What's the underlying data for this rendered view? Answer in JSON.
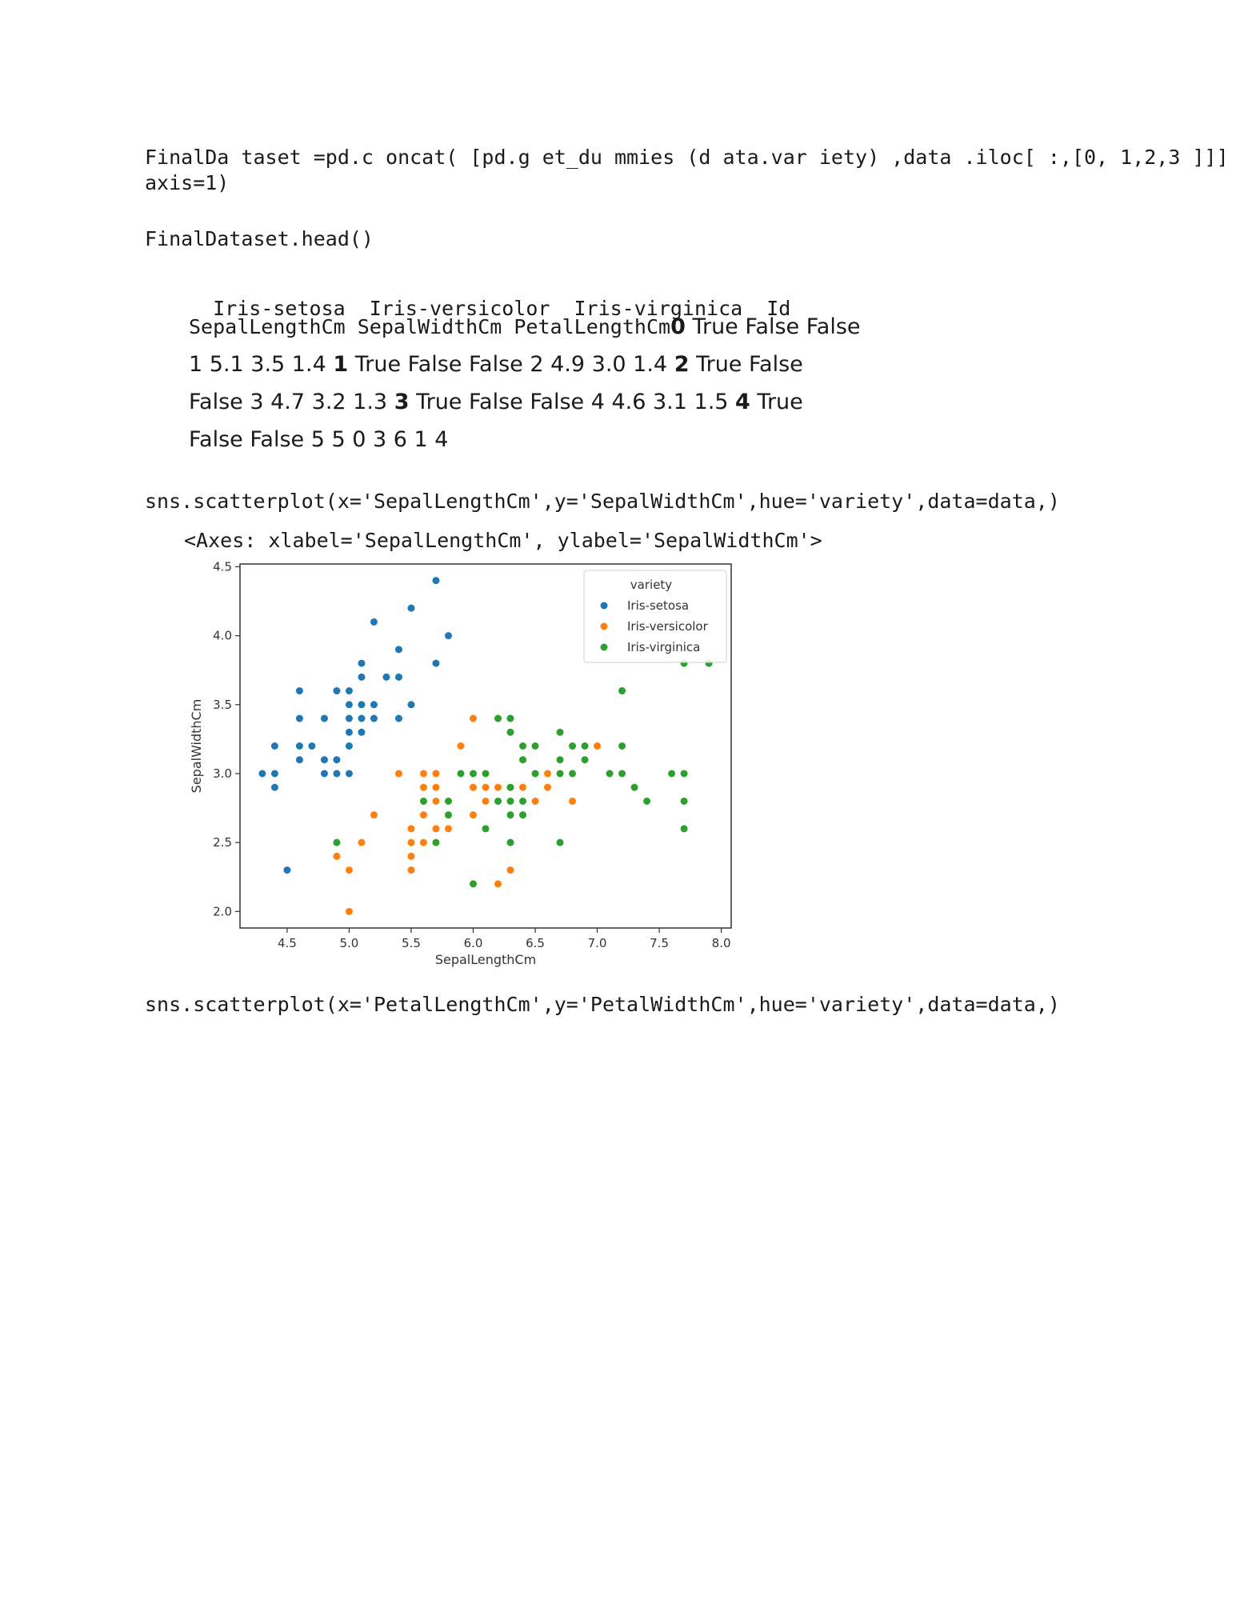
{
  "code_cells": [
    {
      "line1": "FinalDa taset =pd.c oncat( [pd.g et_du mmies (d ata.var iety) ,data .iloc[ :,[0, 1,2,3 ]]] ,",
      "line2": "axis=1)"
    },
    {
      "line1": "FinalDataset.head()"
    },
    {
      "line1": "sns.scatterplot(x='SepalLengthCm',y='SepalWidthCm',hue='variety',data=data,)"
    },
    {
      "line1": "sns.scatterplot(x='PetalLengthCm',y='PetalWidthCm',hue='variety',data=data,)"
    }
  ],
  "table": {
    "header": [
      "Iris-setosa",
      "Iris-versicolor",
      "Iris-virginica",
      "Id"
    ],
    "subheader": "SepalLengthCm SepalWidthCm PetalLengthCm",
    "segments": [
      {
        "b": "0",
        "t": " True False False 1 5.1 3.5 1.4 "
      },
      {
        "b": "1",
        "t": " True False False 2 4.9 3.0 1.4 "
      },
      {
        "b": "2",
        "t": " True False False 3 4.7 3.2 1.3 "
      },
      {
        "b": "3",
        "t": " True False False 4 4.6 3.1 1.5 "
      },
      {
        "b": "4",
        "t": " True False False 5 5 0 3 6 1 4"
      }
    ]
  },
  "axes_repr": "<Axes: xlabel='SepalLengthCm', ylabel='SepalWidthCm'>",
  "colors": {
    "setosa": "#1f77b4",
    "versicolor": "#ff7f0e",
    "virginica": "#2ca02c"
  },
  "chart_data": {
    "type": "scatter",
    "xlabel": "SepalLengthCm",
    "ylabel": "SepalWidthCm",
    "xlim": [
      4.12,
      8.08
    ],
    "ylim": [
      1.88,
      4.52
    ],
    "xticks": [
      "4.5",
      "5.0",
      "5.5",
      "6.0",
      "6.5",
      "7.0",
      "7.5",
      "8.0"
    ],
    "yticks": [
      "2.0",
      "2.5",
      "3.0",
      "3.5",
      "4.0",
      "4.5"
    ],
    "legend": {
      "title": "variety",
      "placement": "top-right"
    },
    "grid": false,
    "series": [
      {
        "name": "Iris-setosa",
        "points": [
          [
            5.1,
            3.5
          ],
          [
            4.9,
            3.0
          ],
          [
            4.7,
            3.2
          ],
          [
            4.6,
            3.1
          ],
          [
            5.0,
            3.6
          ],
          [
            5.4,
            3.9
          ],
          [
            4.6,
            3.4
          ],
          [
            5.0,
            3.4
          ],
          [
            4.4,
            2.9
          ],
          [
            4.9,
            3.1
          ],
          [
            5.4,
            3.7
          ],
          [
            4.8,
            3.4
          ],
          [
            4.8,
            3.0
          ],
          [
            4.3,
            3.0
          ],
          [
            5.8,
            4.0
          ],
          [
            5.7,
            4.4
          ],
          [
            5.4,
            3.9
          ],
          [
            5.1,
            3.5
          ],
          [
            5.7,
            3.8
          ],
          [
            5.1,
            3.8
          ],
          [
            5.4,
            3.4
          ],
          [
            5.1,
            3.7
          ],
          [
            4.6,
            3.6
          ],
          [
            5.1,
            3.3
          ],
          [
            4.8,
            3.4
          ],
          [
            5.0,
            3.0
          ],
          [
            5.0,
            3.4
          ],
          [
            5.2,
            3.5
          ],
          [
            5.2,
            3.4
          ],
          [
            4.7,
            3.2
          ],
          [
            4.8,
            3.1
          ],
          [
            5.4,
            3.4
          ],
          [
            5.2,
            4.1
          ],
          [
            5.5,
            4.2
          ],
          [
            4.9,
            3.1
          ],
          [
            5.0,
            3.2
          ],
          [
            5.5,
            3.5
          ],
          [
            4.9,
            3.6
          ],
          [
            4.4,
            3.0
          ],
          [
            5.1,
            3.4
          ],
          [
            5.0,
            3.5
          ],
          [
            4.5,
            2.3
          ],
          [
            4.4,
            3.2
          ],
          [
            5.0,
            3.5
          ],
          [
            5.1,
            3.8
          ],
          [
            4.8,
            3.0
          ],
          [
            5.1,
            3.8
          ],
          [
            4.6,
            3.2
          ],
          [
            5.3,
            3.7
          ],
          [
            5.0,
            3.3
          ]
        ]
      },
      {
        "name": "Iris-versicolor",
        "points": [
          [
            7.0,
            3.2
          ],
          [
            6.4,
            3.2
          ],
          [
            6.9,
            3.1
          ],
          [
            5.5,
            2.3
          ],
          [
            6.5,
            2.8
          ],
          [
            5.7,
            2.8
          ],
          [
            6.3,
            3.3
          ],
          [
            4.9,
            2.4
          ],
          [
            6.6,
            2.9
          ],
          [
            5.2,
            2.7
          ],
          [
            5.0,
            2.0
          ],
          [
            5.9,
            3.0
          ],
          [
            6.0,
            2.2
          ],
          [
            6.1,
            2.9
          ],
          [
            5.6,
            2.9
          ],
          [
            6.7,
            3.1
          ],
          [
            5.6,
            3.0
          ],
          [
            5.8,
            2.7
          ],
          [
            6.2,
            2.2
          ],
          [
            5.6,
            2.5
          ],
          [
            5.9,
            3.2
          ],
          [
            6.1,
            2.8
          ],
          [
            6.3,
            2.5
          ],
          [
            6.1,
            2.8
          ],
          [
            6.4,
            2.9
          ],
          [
            6.6,
            3.0
          ],
          [
            6.8,
            2.8
          ],
          [
            6.7,
            3.0
          ],
          [
            6.0,
            2.9
          ],
          [
            5.7,
            2.6
          ],
          [
            5.5,
            2.4
          ],
          [
            5.5,
            2.4
          ],
          [
            5.8,
            2.7
          ],
          [
            6.0,
            2.7
          ],
          [
            5.4,
            3.0
          ],
          [
            6.0,
            3.4
          ],
          [
            6.7,
            3.1
          ],
          [
            6.3,
            2.3
          ],
          [
            5.6,
            3.0
          ],
          [
            5.5,
            2.5
          ],
          [
            5.5,
            2.6
          ],
          [
            6.1,
            3.0
          ],
          [
            5.8,
            2.6
          ],
          [
            5.0,
            2.3
          ],
          [
            5.6,
            2.7
          ],
          [
            5.7,
            3.0
          ],
          [
            5.7,
            2.9
          ],
          [
            6.2,
            2.9
          ],
          [
            5.1,
            2.5
          ],
          [
            5.7,
            2.8
          ]
        ]
      },
      {
        "name": "Iris-virginica",
        "points": [
          [
            6.3,
            3.3
          ],
          [
            5.8,
            2.7
          ],
          [
            7.1,
            3.0
          ],
          [
            6.3,
            2.9
          ],
          [
            6.5,
            3.0
          ],
          [
            7.6,
            3.0
          ],
          [
            4.9,
            2.5
          ],
          [
            7.3,
            2.9
          ],
          [
            6.7,
            2.5
          ],
          [
            7.2,
            3.6
          ],
          [
            6.5,
            3.2
          ],
          [
            6.4,
            2.7
          ],
          [
            6.8,
            3.0
          ],
          [
            5.7,
            2.5
          ],
          [
            5.8,
            2.8
          ],
          [
            6.4,
            3.2
          ],
          [
            6.5,
            3.0
          ],
          [
            7.7,
            3.8
          ],
          [
            7.7,
            2.6
          ],
          [
            6.0,
            2.2
          ],
          [
            6.9,
            3.2
          ],
          [
            5.6,
            2.8
          ],
          [
            7.7,
            2.8
          ],
          [
            6.3,
            2.7
          ],
          [
            6.7,
            3.3
          ],
          [
            7.2,
            3.2
          ],
          [
            6.2,
            2.8
          ],
          [
            6.1,
            3.0
          ],
          [
            6.4,
            2.8
          ],
          [
            7.2,
            3.0
          ],
          [
            7.4,
            2.8
          ],
          [
            7.9,
            3.8
          ],
          [
            6.4,
            2.8
          ],
          [
            6.3,
            2.8
          ],
          [
            6.1,
            2.6
          ],
          [
            7.7,
            3.0
          ],
          [
            6.3,
            3.4
          ],
          [
            6.4,
            3.1
          ],
          [
            6.0,
            3.0
          ],
          [
            6.9,
            3.1
          ],
          [
            6.7,
            3.1
          ],
          [
            6.9,
            3.1
          ],
          [
            5.8,
            2.7
          ],
          [
            6.8,
            3.2
          ],
          [
            6.7,
            3.3
          ],
          [
            6.7,
            3.0
          ],
          [
            6.3,
            2.5
          ],
          [
            6.5,
            3.0
          ],
          [
            6.2,
            3.4
          ],
          [
            5.9,
            3.0
          ]
        ]
      }
    ]
  }
}
